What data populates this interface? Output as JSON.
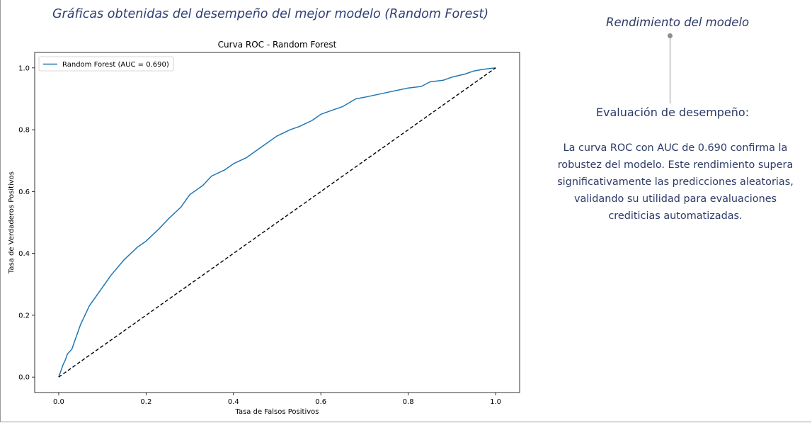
{
  "slide": {
    "title": "Gráficas obtenidas del desempeño del mejor modelo (Random Forest)"
  },
  "side_panel": {
    "heading": "Rendimiento del modelo",
    "subheading": "Evaluación de desempeño:",
    "body": "La curva ROC con AUC de 0.690 confirma la robustez del modelo. Este rendimiento supera significativamente las predicciones aleatorias, validando su utilidad para evaluaciones crediticias automatizadas."
  },
  "colors": {
    "text_primary": "#2b3a67",
    "roc_line": "#1f77b4",
    "diagonal": "#000000"
  },
  "chart_data": {
    "type": "line",
    "title": "Curva ROC - Random Forest",
    "xlabel": "Tasa de Falsos Positivos",
    "ylabel": "Tasa de Verdaderos Positivos",
    "xlim": [
      -0.055,
      1.055
    ],
    "ylim": [
      -0.05,
      1.05
    ],
    "xticks": [
      0.0,
      0.2,
      0.4,
      0.6,
      0.8,
      1.0
    ],
    "xtick_labels": [
      "0.0",
      "0.2",
      "0.4",
      "0.6",
      "0.8",
      "1.0"
    ],
    "yticks": [
      0.0,
      0.2,
      0.4,
      0.6,
      0.8,
      1.0
    ],
    "ytick_labels": [
      "0.0",
      "0.2",
      "0.4",
      "0.6",
      "0.8",
      "1.0"
    ],
    "grid": false,
    "legend_position": "upper left",
    "series": [
      {
        "name": "Random Forest (AUC = 0.690)",
        "color": "#1f77b4",
        "style": "solid",
        "x": [
          0.0,
          0.005,
          0.01,
          0.015,
          0.02,
          0.03,
          0.04,
          0.05,
          0.06,
          0.07,
          0.08,
          0.1,
          0.12,
          0.15,
          0.18,
          0.2,
          0.23,
          0.25,
          0.28,
          0.3,
          0.33,
          0.35,
          0.38,
          0.4,
          0.43,
          0.45,
          0.48,
          0.5,
          0.53,
          0.55,
          0.58,
          0.6,
          0.63,
          0.65,
          0.68,
          0.7,
          0.75,
          0.8,
          0.83,
          0.85,
          0.88,
          0.9,
          0.93,
          0.95,
          0.97,
          1.0
        ],
        "y": [
          0.0,
          0.02,
          0.04,
          0.055,
          0.075,
          0.09,
          0.13,
          0.17,
          0.2,
          0.23,
          0.25,
          0.29,
          0.33,
          0.38,
          0.42,
          0.44,
          0.48,
          0.51,
          0.55,
          0.59,
          0.62,
          0.65,
          0.67,
          0.69,
          0.71,
          0.73,
          0.76,
          0.78,
          0.8,
          0.81,
          0.83,
          0.85,
          0.865,
          0.875,
          0.9,
          0.905,
          0.92,
          0.935,
          0.94,
          0.955,
          0.96,
          0.97,
          0.98,
          0.99,
          0.995,
          1.0
        ]
      },
      {
        "name": "",
        "color": "#000000",
        "style": "dashed",
        "x": [
          0.0,
          1.0
        ],
        "y": [
          0.0,
          1.0
        ]
      }
    ]
  }
}
